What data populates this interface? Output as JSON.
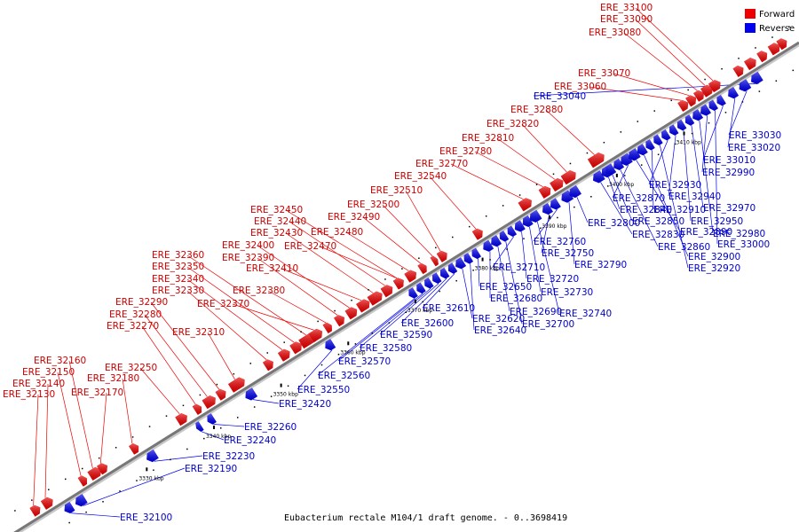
{
  "caption": "Eubacterium rectale M104/1 draft genome. - 0..3698419",
  "legend": {
    "forward": {
      "label": "Forward",
      "color": "#ee0000"
    },
    "reverse": {
      "label": "Reverse",
      "color": "#0000ee"
    }
  },
  "backbone_color": "#777777",
  "ticks": [
    {
      "label": "3330 kbp"
    },
    {
      "label": "3340 kbp"
    },
    {
      "label": "3350 kbp"
    },
    {
      "label": "3360 kbp"
    },
    {
      "label": "3370 kbp"
    },
    {
      "label": "3380 kbp"
    },
    {
      "label": "3390 kbp"
    },
    {
      "label": "3400 kbp"
    },
    {
      "label": "3410 kbp"
    }
  ],
  "forward_genes": [
    "ERE_32130",
    "ERE_32140",
    "ERE_32150",
    "ERE_32160",
    "ERE_32170",
    "ERE_32180",
    "ERE_32250",
    "ERE_32270",
    "ERE_32280",
    "ERE_32290",
    "ERE_32310",
    "ERE_32330",
    "ERE_32340",
    "ERE_32350",
    "ERE_32360",
    "ERE_32370",
    "ERE_32380",
    "ERE_32390",
    "ERE_32400",
    "ERE_32410",
    "ERE_32430",
    "ERE_32440",
    "ERE_32450",
    "ERE_32470",
    "ERE_32480",
    "ERE_32490",
    "ERE_32500",
    "ERE_32510",
    "ERE_32540",
    "ERE_32770",
    "ERE_32780",
    "ERE_32810",
    "ERE_32820",
    "ERE_32880",
    "ERE_33060",
    "ERE_33070",
    "ERE_33080",
    "ERE_33090",
    "ERE_33100"
  ],
  "reverse_genes": [
    "ERE_32100",
    "ERE_32190",
    "ERE_32230",
    "ERE_32240",
    "ERE_32260",
    "ERE_32420",
    "ERE_32550",
    "ERE_32560",
    "ERE_32570",
    "ERE_32580",
    "ERE_32590",
    "ERE_32600",
    "ERE_32610",
    "ERE_32620",
    "ERE_32640",
    "ERE_32650",
    "ERE_32680",
    "ERE_32690",
    "ERE_32700",
    "ERE_32710",
    "ERE_32720",
    "ERE_32730",
    "ERE_32740",
    "ERE_32750",
    "ERE_32760",
    "ERE_32790",
    "ERE_32800",
    "ERE_32830",
    "ERE_32840",
    "ERE_32850",
    "ERE_32860",
    "ERE_32870",
    "ERE_32890",
    "ERE_32900",
    "ERE_32910",
    "ERE_32920",
    "ERE_32930",
    "ERE_32940",
    "ERE_32950",
    "ERE_32970",
    "ERE_32980",
    "ERE_32990",
    "ERE_33000",
    "ERE_33010",
    "ERE_33020",
    "ERE_33030",
    "ERE_33040"
  ]
}
